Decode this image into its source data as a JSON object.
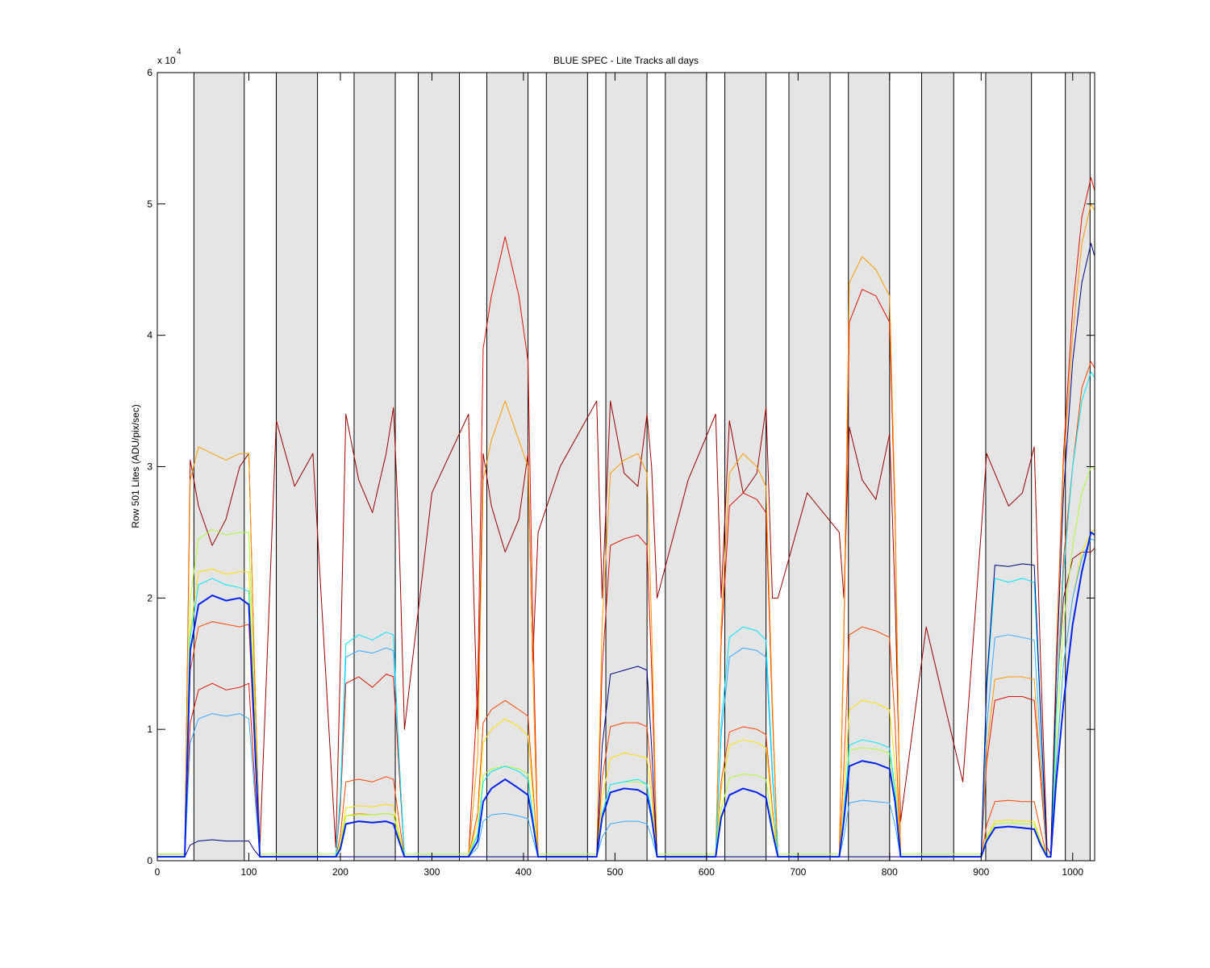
{
  "chart_data": {
    "type": "line",
    "title": "BLUE SPEC - Lite Tracks all days",
    "y_label": "Row 501 Lites (ADU/pix/sec)",
    "y_multiplier": {
      "base": "x 10",
      "exponent": "4"
    },
    "xlim": [
      0,
      1024
    ],
    "ylim": [
      0,
      6
    ],
    "xticks": [
      0,
      100,
      200,
      300,
      400,
      500,
      600,
      700,
      800,
      900,
      1000
    ],
    "yticks": [
      0,
      1,
      2,
      3,
      4,
      5,
      6
    ],
    "bands": [
      [
        40,
        95
      ],
      [
        130,
        175
      ],
      [
        215,
        260
      ],
      [
        285,
        330
      ],
      [
        360,
        405
      ],
      [
        425,
        470
      ],
      [
        490,
        535
      ],
      [
        555,
        600
      ],
      [
        620,
        665
      ],
      [
        690,
        735
      ],
      [
        755,
        800
      ],
      [
        835,
        870
      ],
      [
        905,
        955
      ],
      [
        992,
        1019
      ]
    ],
    "band_color": "#e5e5e5",
    "x": [
      0,
      30,
      36,
      45,
      60,
      75,
      90,
      100,
      106,
      112,
      130,
      150,
      170,
      195,
      200,
      206,
      220,
      235,
      250,
      258,
      264,
      270,
      300,
      340,
      350,
      356,
      365,
      380,
      395,
      405,
      410,
      416,
      440,
      480,
      486,
      495,
      510,
      525,
      535,
      540,
      546,
      580,
      610,
      616,
      625,
      640,
      655,
      665,
      672,
      678,
      710,
      745,
      750,
      756,
      770,
      785,
      800,
      806,
      812,
      840,
      880,
      900,
      906,
      915,
      930,
      945,
      958,
      965,
      972,
      976,
      982,
      990,
      1000,
      1010,
      1020,
      1024
    ],
    "series": [
      {
        "color": "#990000",
        "values": [
          0.05,
          0.05,
          3.05,
          2.7,
          2.4,
          2.6,
          3.0,
          3.1,
          1.5,
          0.1,
          3.35,
          2.85,
          3.1,
          0.1,
          1.5,
          3.4,
          2.9,
          2.65,
          3.1,
          3.45,
          2.5,
          1.0,
          2.8,
          3.4,
          1.0,
          3.1,
          2.7,
          2.35,
          2.6,
          3.1,
          1.5,
          2.5,
          3.0,
          3.5,
          2.0,
          3.5,
          2.95,
          2.85,
          3.4,
          3.0,
          2.0,
          2.9,
          3.4,
          2.0,
          3.35,
          2.8,
          2.95,
          3.45,
          2.0,
          2.0,
          2.8,
          2.5,
          2.0,
          3.3,
          2.9,
          2.75,
          3.25,
          2.0,
          0.3,
          1.78,
          0.6,
          2.5,
          3.1,
          2.95,
          2.7,
          2.8,
          3.15,
          1.5,
          0.1,
          0.05,
          1.2,
          2.0,
          2.3,
          2.35,
          2.35,
          2.38
        ]
      },
      {
        "color": "#dd1100",
        "values": [
          0.03,
          0.03,
          1.05,
          1.3,
          1.35,
          1.3,
          1.32,
          1.35,
          0.65,
          0.03,
          0.03,
          0.03,
          0.03,
          0.03,
          0.42,
          1.35,
          1.4,
          1.32,
          1.42,
          1.4,
          0.7,
          0.03,
          0.03,
          0.03,
          1.3,
          3.9,
          4.3,
          4.75,
          4.3,
          3.8,
          1.9,
          0.03,
          0.03,
          0.03,
          1.47,
          2.4,
          2.45,
          2.48,
          2.4,
          1.47,
          0.03,
          0.03,
          0.03,
          1.68,
          2.7,
          2.8,
          2.75,
          2.65,
          1.12,
          0.03,
          0.03,
          0.03,
          1.7,
          4.1,
          4.35,
          4.3,
          4.1,
          2.6,
          0.03,
          0.03,
          0.03,
          0.03,
          0.75,
          1.22,
          1.25,
          1.25,
          1.22,
          0.62,
          0.03,
          0.03,
          1.55,
          3.1,
          4.2,
          4.9,
          5.2,
          5.1
        ]
      },
      {
        "color": "#ff9900",
        "values": [
          0.03,
          0.03,
          2.9,
          3.15,
          3.1,
          3.05,
          3.1,
          3.1,
          1.55,
          0.03,
          0.03,
          0.03,
          0.03,
          0.03,
          0.11,
          0.34,
          0.36,
          0.35,
          0.36,
          0.35,
          0.18,
          0.03,
          0.03,
          0.03,
          0.8,
          2.9,
          3.2,
          3.5,
          3.2,
          3.0,
          1.5,
          0.03,
          0.03,
          0.03,
          1.8,
          2.95,
          3.05,
          3.1,
          2.95,
          1.8,
          0.03,
          0.03,
          0.03,
          1.8,
          2.95,
          3.1,
          3.0,
          2.85,
          1.2,
          0.03,
          0.03,
          0.03,
          1.8,
          4.4,
          4.6,
          4.5,
          4.3,
          2.7,
          0.03,
          0.03,
          0.03,
          0.03,
          0.84,
          1.38,
          1.4,
          1.4,
          1.38,
          0.7,
          0.03,
          0.03,
          1.5,
          3.0,
          4.0,
          4.7,
          5.0,
          4.95
        ]
      },
      {
        "color": "#ff4400",
        "values": [
          0.03,
          0.03,
          1.45,
          1.78,
          1.82,
          1.8,
          1.78,
          1.8,
          0.9,
          0.03,
          0.03,
          0.03,
          0.03,
          0.03,
          0.19,
          0.6,
          0.62,
          0.6,
          0.64,
          0.62,
          0.31,
          0.03,
          0.03,
          0.03,
          0.36,
          1.05,
          1.15,
          1.22,
          1.15,
          1.1,
          0.6,
          0.03,
          0.03,
          0.03,
          0.63,
          1.02,
          1.05,
          1.05,
          1.02,
          0.63,
          0.03,
          0.03,
          0.03,
          0.6,
          0.98,
          1.02,
          1.0,
          0.96,
          0.4,
          0.03,
          0.03,
          0.03,
          0.7,
          1.72,
          1.78,
          1.75,
          1.7,
          1.05,
          0.03,
          0.03,
          0.03,
          0.03,
          0.27,
          0.45,
          0.46,
          0.45,
          0.45,
          0.23,
          0.03,
          0.03,
          1.15,
          2.3,
          3.0,
          3.6,
          3.8,
          3.75
        ]
      },
      {
        "color": "#ffe000",
        "values": [
          0.03,
          0.03,
          1.75,
          2.2,
          2.22,
          2.18,
          2.2,
          2.2,
          1.1,
          0.03,
          0.03,
          0.03,
          0.03,
          0.03,
          0.13,
          0.4,
          0.42,
          0.41,
          0.43,
          0.42,
          0.21,
          0.03,
          0.03,
          0.03,
          0.3,
          0.9,
          1.0,
          1.08,
          1.02,
          0.95,
          0.52,
          0.03,
          0.03,
          0.03,
          0.48,
          0.78,
          0.82,
          0.8,
          0.78,
          0.48,
          0.03,
          0.03,
          0.03,
          0.54,
          0.88,
          0.92,
          0.9,
          0.86,
          0.36,
          0.03,
          0.03,
          0.03,
          0.48,
          1.15,
          1.22,
          1.2,
          1.15,
          0.72,
          0.03,
          0.03,
          0.03,
          0.03,
          0.18,
          0.3,
          0.31,
          0.3,
          0.3,
          0.15,
          0.03,
          0.03,
          0.75,
          1.5,
          2.0,
          2.35,
          2.5,
          2.52
        ]
      },
      {
        "color": "#aaff33",
        "values": [
          0.05,
          0.05,
          2.0,
          2.45,
          2.52,
          2.48,
          2.5,
          2.5,
          1.25,
          0.05,
          0.05,
          0.05,
          0.05,
          0.05,
          0.11,
          0.34,
          0.35,
          0.35,
          0.36,
          0.35,
          0.18,
          0.05,
          0.05,
          0.05,
          0.21,
          0.65,
          0.7,
          0.72,
          0.7,
          0.66,
          0.35,
          0.05,
          0.05,
          0.05,
          0.36,
          0.58,
          0.6,
          0.6,
          0.58,
          0.36,
          0.05,
          0.05,
          0.05,
          0.39,
          0.63,
          0.66,
          0.65,
          0.62,
          0.26,
          0.05,
          0.05,
          0.05,
          0.34,
          0.84,
          0.86,
          0.85,
          0.82,
          0.51,
          0.05,
          0.05,
          0.05,
          0.05,
          0.17,
          0.28,
          0.29,
          0.28,
          0.28,
          0.14,
          0.05,
          0.05,
          0.9,
          1.8,
          2.4,
          2.8,
          3.0,
          2.98
        ]
      },
      {
        "color": "#33aaff",
        "values": [
          0.03,
          0.03,
          0.9,
          1.08,
          1.12,
          1.1,
          1.12,
          1.08,
          0.55,
          0.03,
          0.03,
          0.03,
          0.03,
          0.03,
          0.48,
          1.55,
          1.6,
          1.58,
          1.62,
          1.6,
          0.8,
          0.03,
          0.03,
          0.03,
          0.1,
          0.3,
          0.35,
          0.36,
          0.34,
          0.32,
          0.18,
          0.03,
          0.03,
          0.03,
          0.18,
          0.28,
          0.3,
          0.3,
          0.28,
          0.18,
          0.03,
          0.03,
          0.03,
          0.96,
          1.55,
          1.62,
          1.6,
          1.55,
          0.64,
          0.03,
          0.03,
          0.03,
          0.18,
          0.44,
          0.46,
          0.45,
          0.44,
          0.27,
          0.03,
          0.03,
          0.03,
          0.03,
          1.02,
          1.7,
          1.72,
          1.7,
          1.68,
          0.85,
          0.03,
          0.03,
          0.73,
          1.5,
          2.0,
          2.3,
          2.45,
          2.44
        ]
      },
      {
        "color": "#00e5ff",
        "values": [
          0.03,
          0.03,
          1.7,
          2.1,
          2.15,
          2.1,
          2.08,
          2.05,
          1.0,
          0.03,
          0.03,
          0.03,
          0.03,
          0.03,
          0.5,
          1.65,
          1.72,
          1.68,
          1.74,
          1.72,
          0.8,
          0.03,
          0.03,
          0.03,
          0.2,
          0.6,
          0.68,
          0.72,
          0.68,
          0.62,
          0.35,
          0.03,
          0.03,
          0.03,
          0.36,
          0.58,
          0.6,
          0.62,
          0.58,
          0.36,
          0.03,
          0.03,
          0.03,
          1.05,
          1.7,
          1.78,
          1.75,
          1.68,
          0.7,
          0.03,
          0.03,
          0.03,
          0.36,
          0.88,
          0.92,
          0.9,
          0.86,
          0.54,
          0.03,
          0.03,
          0.03,
          0.03,
          1.3,
          2.15,
          2.12,
          2.15,
          2.12,
          1.07,
          0.03,
          0.03,
          1.1,
          2.2,
          3.0,
          3.5,
          3.72,
          3.68
        ]
      },
      {
        "color": "#000088",
        "values": [
          0.03,
          0.03,
          0.12,
          0.15,
          0.16,
          0.15,
          0.15,
          0.15,
          0.08,
          0.03,
          0.03,
          0.03,
          0.03,
          0.03,
          0.03,
          0.03,
          0.03,
          0.03,
          0.03,
          0.03,
          0.03,
          0.03,
          0.03,
          0.03,
          0.03,
          0.03,
          0.03,
          0.03,
          0.03,
          0.03,
          0.03,
          0.03,
          0.03,
          0.03,
          0.87,
          1.42,
          1.45,
          1.48,
          1.45,
          0.87,
          0.03,
          0.03,
          0.03,
          0.03,
          0.03,
          0.03,
          0.03,
          0.03,
          0.03,
          0.03,
          0.03,
          0.03,
          0.03,
          0.03,
          0.03,
          0.03,
          0.03,
          0.03,
          0.03,
          0.03,
          0.03,
          0.03,
          1.35,
          2.25,
          2.24,
          2.26,
          2.25,
          1.12,
          0.03,
          0.03,
          1.4,
          2.8,
          3.8,
          4.4,
          4.7,
          4.6
        ]
      },
      {
        "color": "#0022ee",
        "values": [
          0.03,
          0.03,
          1.6,
          1.95,
          2.02,
          1.98,
          2.0,
          1.95,
          1.0,
          0.03,
          0.03,
          0.03,
          0.03,
          0.03,
          0.09,
          0.28,
          0.3,
          0.29,
          0.3,
          0.28,
          0.15,
          0.03,
          0.03,
          0.03,
          0.15,
          0.45,
          0.55,
          0.62,
          0.55,
          0.5,
          0.3,
          0.03,
          0.03,
          0.03,
          0.33,
          0.52,
          0.55,
          0.54,
          0.5,
          0.33,
          0.03,
          0.03,
          0.03,
          0.33,
          0.5,
          0.55,
          0.52,
          0.48,
          0.22,
          0.03,
          0.03,
          0.03,
          0.3,
          0.72,
          0.76,
          0.74,
          0.7,
          0.45,
          0.03,
          0.03,
          0.03,
          0.03,
          0.15,
          0.25,
          0.26,
          0.25,
          0.24,
          0.12,
          0.03,
          0.03,
          0.6,
          1.2,
          1.8,
          2.2,
          2.5,
          2.48
        ]
      }
    ]
  }
}
